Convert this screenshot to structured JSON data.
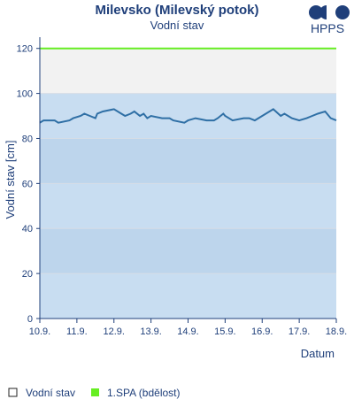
{
  "chart_data": {
    "type": "line",
    "title": "Milevsko (Milevský potok)",
    "subtitle": "Vodní stav",
    "xlabel": "Datum",
    "ylabel": "Vodní stav [cm]",
    "ylim": [
      0,
      125
    ],
    "yticks": [
      0,
      20,
      40,
      60,
      80,
      100,
      120
    ],
    "xlim": [
      0,
      8
    ],
    "xticks": [
      "10.9.",
      "11.9.",
      "12.9.",
      "13.9.",
      "14.9.",
      "15.9.",
      "16.9.",
      "17.9.",
      "18.9."
    ],
    "series": [
      {
        "name": "Vodní stav",
        "color": "#2f6fa5",
        "x": [
          0,
          0.1,
          0.15,
          0.4,
          0.5,
          0.8,
          0.9,
          1.1,
          1.2,
          1.35,
          1.5,
          1.55,
          1.7,
          2.0,
          2.2,
          2.3,
          2.45,
          2.55,
          2.7,
          2.8,
          2.9,
          3.0,
          3.3,
          3.5,
          3.6,
          3.9,
          4.0,
          4.2,
          4.5,
          4.7,
          4.8,
          4.95,
          5.0,
          5.2,
          5.5,
          5.65,
          5.8,
          6.0,
          6.1,
          6.3,
          6.5,
          6.6,
          6.8,
          7.0,
          7.2,
          7.35,
          7.5,
          7.7,
          7.85,
          8.0
        ],
        "y": [
          87,
          88,
          88,
          88,
          87,
          88,
          89,
          90,
          91,
          90,
          89,
          91,
          92,
          93,
          91,
          90,
          91,
          92,
          90,
          91,
          89,
          90,
          89,
          89,
          88,
          87,
          88,
          89,
          88,
          88,
          89,
          91,
          90,
          88,
          89,
          89,
          88,
          90,
          91,
          93,
          90,
          91,
          89,
          88,
          89,
          90,
          91,
          92,
          89,
          88
        ]
      },
      {
        "name": "1.SPA (bdělost)",
        "color": "#66ee22",
        "x": [
          0,
          8
        ],
        "y": [
          120,
          120
        ]
      }
    ],
    "bands": [
      {
        "from": 0,
        "to": 20,
        "color": "#c8ddf1"
      },
      {
        "from": 20,
        "to": 40,
        "color": "#bdd5ec"
      },
      {
        "from": 40,
        "to": 60,
        "color": "#c8ddf1"
      },
      {
        "from": 60,
        "to": 80,
        "color": "#bdd5ec"
      },
      {
        "from": 80,
        "to": 100,
        "color": "#c8ddf1"
      },
      {
        "from": 100,
        "to": 120,
        "color": "#f2f2f2"
      }
    ],
    "legend_placement": "bottom"
  },
  "logo": {
    "text": "HPPS",
    "color": "#1f3f7a"
  }
}
